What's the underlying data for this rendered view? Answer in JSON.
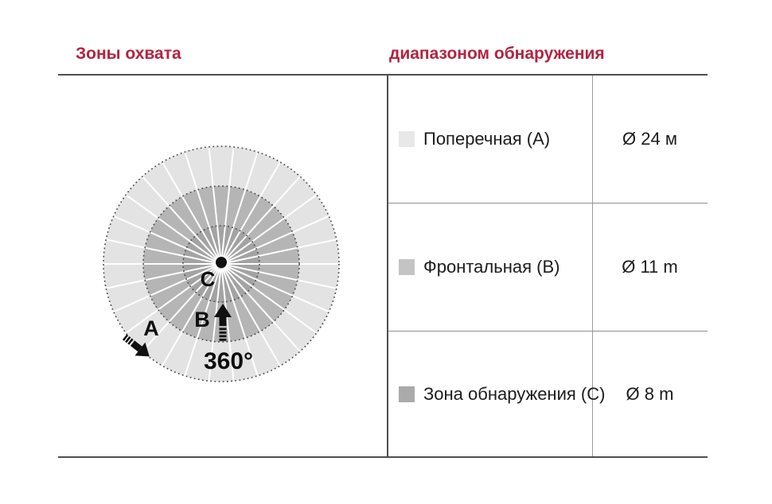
{
  "headers": {
    "left": "Зоны охвата",
    "right": "диапазоном обнаружения",
    "color": "#b22441"
  },
  "diagram": {
    "rotation_label": "360°",
    "zone_labels": {
      "a": "A",
      "b": "B",
      "c": "C"
    },
    "spokes": 30,
    "spoke_offset_deg": 6,
    "colors": {
      "outer": "#e3e3e3",
      "middle": "#b5b5b5",
      "inner": "#a3a3a3",
      "spoke": "#ffffff",
      "border_dots": "#4a4a4a",
      "marks": "#111111"
    }
  },
  "table": {
    "rows": [
      {
        "label": "Поперечная (A)",
        "value": "Ø 24 м",
        "swatch": "#e8e8e8"
      },
      {
        "label": "Фронтальная (B)",
        "value": "Ø 11 m",
        "swatch": "#c4c4c4"
      },
      {
        "label": "Зона обнаружения (C)",
        "value": "Ø 8 m",
        "swatch": "#aaaaaa"
      }
    ]
  }
}
